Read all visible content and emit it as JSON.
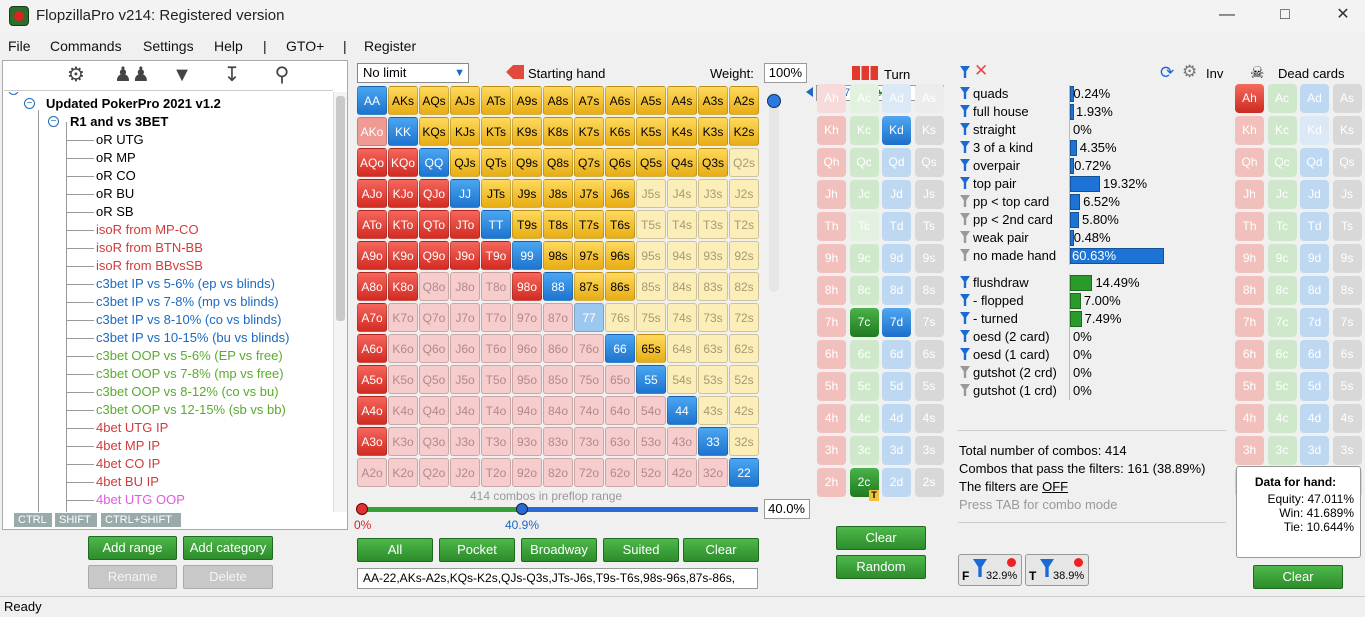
{
  "window": {
    "title": "FlopzillaPro v214: Registered version"
  },
  "menu": [
    "File",
    "Commands",
    "Settings",
    "Help",
    "|",
    "GTO+",
    "|",
    "Register"
  ],
  "tree": [
    {
      "label": "Updated PokerPro 2021 v1.2",
      "color": "#000",
      "bold": true
    },
    {
      "label": "R1 and vs 3BET",
      "color": "#000",
      "bold": true
    },
    {
      "label": "oR UTG",
      "color": "#000"
    },
    {
      "label": "oR MP",
      "color": "#000"
    },
    {
      "label": "oR CO",
      "color": "#000"
    },
    {
      "label": "oR BU",
      "color": "#000"
    },
    {
      "label": "oR SB",
      "color": "#000"
    },
    {
      "label": "isoR from MP-CO",
      "color": "#d33a3a"
    },
    {
      "label": "isoR from BTN-BB",
      "color": "#d33a3a"
    },
    {
      "label": "isoR from BBvsSB",
      "color": "#d33a3a"
    },
    {
      "label": "c3bet IP vs 5-6% (ep vs blinds)",
      "color": "#1a6ac4"
    },
    {
      "label": "c3bet IP vs 7-8% (mp vs blinds)",
      "color": "#1a6ac4"
    },
    {
      "label": "c3bet IP vs 8-10% (co vs blinds)",
      "color": "#1a6ac4"
    },
    {
      "label": "c3bet IP vs 10-15% (bu vs blinds)",
      "color": "#1a6ac4"
    },
    {
      "label": "c3bet OOP vs 5-6% (EP vs free)",
      "color": "#5aab2e"
    },
    {
      "label": "c3bet OOP vs 7-8% (mp vs free)",
      "color": "#5aab2e"
    },
    {
      "label": "c3bet OOP vs 8-12% (co vs bu)",
      "color": "#5aab2e"
    },
    {
      "label": "c3bet OOP vs 12-15% (sb vs bb)",
      "color": "#5aab2e"
    },
    {
      "label": "4bet UTG IP",
      "color": "#d33a3a"
    },
    {
      "label": "4bet MP IP",
      "color": "#d33a3a"
    },
    {
      "label": "4bet CO IP",
      "color": "#d33a3a"
    },
    {
      "label": "4bet BU IP",
      "color": "#d33a3a"
    },
    {
      "label": "4bet UTG OOP",
      "color": "#e15ae0"
    }
  ],
  "mod_keys": [
    "CTRL",
    "SHIFT",
    "CTRL+SHIFT"
  ],
  "left_buttons": {
    "add_range": "Add range",
    "add_category": "Add category",
    "rename": "Rename",
    "delete": "Delete"
  },
  "range_panel": {
    "dropdown": "No limit",
    "starting_hand": "Starting hand",
    "weight_label": "Weight:",
    "weight": "100%",
    "combos_note": "414 combos in preflop range",
    "slider_min": "0%",
    "slider_mid": "40.9%",
    "slider_value": "40.0%",
    "range_text": "AA-22,AKs-A2s,KQs-K2s,QJs-Q3s,JTs-J6s,T9s-T6s,98s-96s,87s-86s,"
  },
  "grid": {
    "ranks": [
      "A",
      "K",
      "Q",
      "J",
      "T",
      "9",
      "8",
      "7",
      "6",
      "5",
      "4",
      "3",
      "2"
    ],
    "selected": [
      "AA",
      "AKs",
      "AQs",
      "AJs",
      "ATs",
      "A9s",
      "A8s",
      "A7s",
      "A6s",
      "A5s",
      "A4s",
      "A3s",
      "A2s",
      "KK",
      "KQs",
      "KJs",
      "KTs",
      "K9s",
      "K8s",
      "K7s",
      "K6s",
      "K5s",
      "K4s",
      "K3s",
      "K2s",
      "QQ",
      "QJs",
      "QTs",
      "Q9s",
      "Q8s",
      "Q7s",
      "Q6s",
      "Q5s",
      "Q4s",
      "Q3s",
      "JJ",
      "JTs",
      "J9s",
      "J8s",
      "J7s",
      "J6s",
      "TT",
      "T9s",
      "T8s",
      "T7s",
      "T6s",
      "99",
      "98s",
      "97s",
      "96s",
      "88",
      "87s",
      "86s",
      "66",
      "65s",
      "55",
      "44",
      "33",
      "22",
      "AKo",
      "AQo",
      "KQo",
      "AJo",
      "KJo",
      "QJo",
      "ATo",
      "KTo",
      "QTo",
      "JTo",
      "T9o",
      "A9o",
      "K9o",
      "Q9o",
      "J9o",
      "98o",
      "A8o",
      "K8o",
      "A7o",
      "A6o",
      "A5o",
      "A4o",
      "A3o"
    ],
    "partial": [
      "77",
      "AKo"
    ]
  },
  "range_buttons": [
    "All",
    "Pocket",
    "Broadway",
    "Suited",
    "Clear"
  ],
  "board": {
    "turn_label": "Turn",
    "cards": [
      "K♦",
      "7♦",
      "7♣",
      "2♣",
      ""
    ],
    "clear": "Clear",
    "random": "Random"
  },
  "board_grid": {
    "ranks": [
      "A",
      "K",
      "Q",
      "J",
      "T",
      "9",
      "8",
      "7",
      "6",
      "5",
      "4",
      "3",
      "2"
    ],
    "suits": [
      "h",
      "c",
      "d",
      "s"
    ],
    "on": [
      "Kd",
      "7c",
      "7d",
      "2c"
    ],
    "dim": [
      "Ah",
      "Ac",
      "Ad",
      "As",
      "Tc",
      "Tc"
    ]
  },
  "filters": {
    "inv_label": "Inv",
    "rows": [
      {
        "label": "quads",
        "pct": "0.24%",
        "bar": 0.24,
        "grey": false
      },
      {
        "label": "full house",
        "pct": "1.93%",
        "bar": 1.93,
        "grey": false
      },
      {
        "label": "straight",
        "pct": "0%",
        "bar": 0,
        "grey": false
      },
      {
        "label": "3 of a kind",
        "pct": "4.35%",
        "bar": 4.35,
        "grey": false
      },
      {
        "label": "overpair",
        "pct": "0.72%",
        "bar": 0.72,
        "grey": false
      },
      {
        "label": "top pair",
        "pct": "19.32%",
        "bar": 19.32,
        "grey": false
      },
      {
        "label": "pp < top card",
        "pct": "6.52%",
        "bar": 6.52,
        "grey": true
      },
      {
        "label": "pp < 2nd card",
        "pct": "5.80%",
        "bar": 5.8,
        "grey": true
      },
      {
        "label": "weak pair",
        "pct": "0.48%",
        "bar": 0.48,
        "grey": true
      },
      {
        "label": "no made hand",
        "pct": "60.63%",
        "bar": 60.63,
        "grey": true
      }
    ],
    "draws": [
      {
        "label": "flushdraw",
        "pct": "14.49%",
        "bar": 14.49,
        "grey": false
      },
      {
        "label": "- flopped",
        "pct": "7.00%",
        "bar": 7.0,
        "grey": false
      },
      {
        "label": "- turned",
        "pct": "7.49%",
        "bar": 7.49,
        "grey": false
      },
      {
        "label": "oesd (2 card)",
        "pct": "0%",
        "bar": 0,
        "grey": false
      },
      {
        "label": "oesd (1 card)",
        "pct": "0%",
        "bar": 0,
        "grey": false
      },
      {
        "label": "gutshot (2 crd)",
        "pct": "0%",
        "bar": 0,
        "grey": true
      },
      {
        "label": "gutshot (1 crd)",
        "pct": "0%",
        "bar": 0,
        "grey": true
      }
    ]
  },
  "stats": {
    "total": "Total number of combos: 414",
    "pass": "Combos that pass the filters: 161 (38.89%)",
    "filters_prefix": "The filters are ",
    "filters_state": "OFF",
    "tab_hint": "Press TAB for combo mode",
    "f_pct": "32.9%",
    "t_pct": "38.9%"
  },
  "dead": {
    "label": "Dead cards",
    "dead": [
      "Ah"
    ],
    "dim": [
      "Kd"
    ],
    "clear": "Clear"
  },
  "hand_data": {
    "title": "Data for hand:",
    "equity": "Equity: 47.011%",
    "win": "Win: 41.689%",
    "tie": "Tie: 10.644%"
  },
  "status": "Ready"
}
